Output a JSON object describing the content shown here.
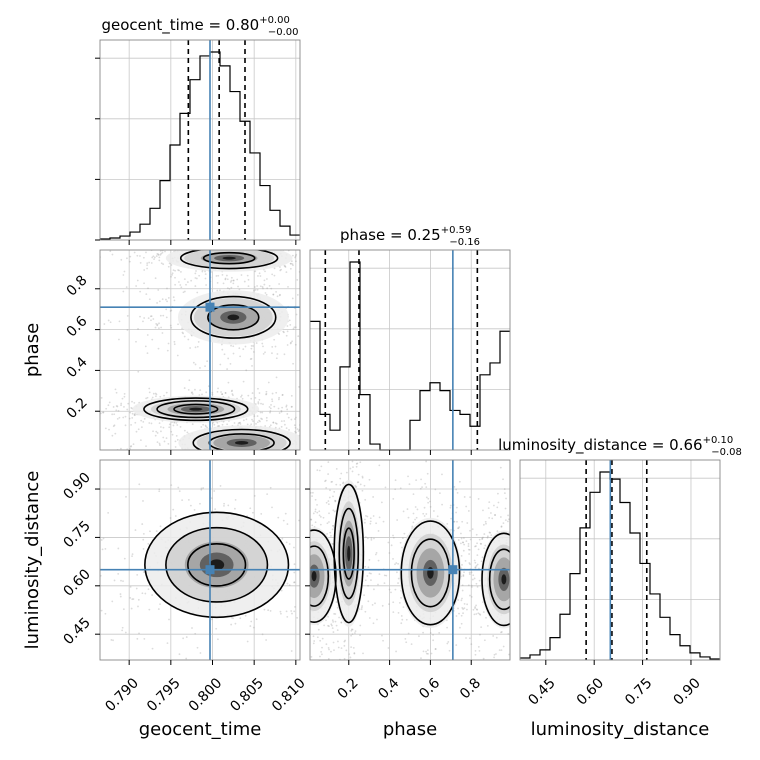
{
  "chart_data": {
    "type": "corner",
    "parameters": [
      "geocent_time",
      "phase",
      "luminosity_distance"
    ],
    "titles": {
      "geocent_time": {
        "name": "geocent_time",
        "median": "0.80",
        "plus": "+0.00",
        "minus": "−0.00"
      },
      "phase": {
        "name": "phase",
        "median": "0.25",
        "plus": "+0.59",
        "minus": "−0.16"
      },
      "luminosity_distance": {
        "name": "luminosity_distance",
        "median": "0.66",
        "plus": "+0.10",
        "minus": "−0.08"
      }
    },
    "ranges": {
      "geocent_time": [
        0.7865,
        0.8105
      ],
      "phase": [
        0.01,
        0.99
      ],
      "luminosity_distance": [
        0.37,
        0.99
      ]
    },
    "ticks": {
      "geocent_time": {
        "values": [
          0.79,
          0.795,
          0.8,
          0.805,
          0.81
        ],
        "labels": [
          "0.790",
          "0.795",
          "0.800",
          "0.805",
          "0.810"
        ]
      },
      "phase": {
        "values": [
          0.2,
          0.4,
          0.6,
          0.8
        ],
        "labels": [
          "0.2",
          "0.4",
          "0.6",
          "0.8"
        ]
      },
      "luminosity_distance": {
        "values": [
          0.45,
          0.6,
          0.75,
          0.9
        ],
        "labels": [
          "0.45",
          "0.60",
          "0.75",
          "0.90"
        ]
      }
    },
    "truths": {
      "geocent_time": 0.7997,
      "phase": 0.71,
      "luminosity_distance": 0.65
    },
    "quantiles": {
      "geocent_time": [
        0.7971,
        0.8008,
        0.8039
      ],
      "phase": [
        0.085,
        0.25,
        0.83
      ],
      "luminosity_distance": [
        0.575,
        0.655,
        0.763
      ]
    },
    "histograms": {
      "geocent_time": {
        "edges": [
          0.7865,
          0.7877,
          0.7889,
          0.7901,
          0.7913,
          0.7925,
          0.7937,
          0.7949,
          0.7961,
          0.7973,
          0.7985,
          0.7997,
          0.8009,
          0.8021,
          0.8033,
          0.8045,
          0.8057,
          0.8069,
          0.8081,
          0.8093,
          0.8105
        ],
        "counts": [
          1,
          2,
          4,
          8,
          16,
          32,
          60,
          96,
          128,
          162,
          186,
          190,
          176,
          150,
          120,
          88,
          55,
          30,
          14,
          5
        ]
      },
      "phase": {
        "edges": [
          0.01,
          0.059,
          0.108,
          0.157,
          0.206,
          0.255,
          0.304,
          0.353,
          0.402,
          0.451,
          0.5,
          0.549,
          0.598,
          0.647,
          0.696,
          0.745,
          0.794,
          0.843,
          0.892,
          0.941,
          0.99
        ],
        "counts": [
          65,
          18,
          10,
          42,
          95,
          28,
          3,
          0,
          0,
          0,
          15,
          30,
          34,
          30,
          20,
          18,
          12,
          38,
          44,
          60
        ]
      },
      "luminosity_distance": {
        "edges": [
          0.37,
          0.401,
          0.432,
          0.463,
          0.494,
          0.525,
          0.556,
          0.587,
          0.618,
          0.649,
          0.68,
          0.711,
          0.742,
          0.773,
          0.804,
          0.835,
          0.866,
          0.897,
          0.928,
          0.959,
          0.99
        ],
        "counts": [
          2,
          5,
          10,
          22,
          45,
          85,
          130,
          165,
          185,
          178,
          155,
          125,
          95,
          65,
          42,
          25,
          14,
          7,
          3,
          1
        ]
      }
    },
    "contours": {
      "phase_vs_geocent_time": [
        {
          "x": 0.798,
          "y": 0.21,
          "sx": 0.004,
          "sy": 0.035,
          "levels": [
            0.4,
            0.6,
            0.85
          ]
        },
        {
          "x": 0.8035,
          "y": 0.045,
          "sx": 0.004,
          "sy": 0.045,
          "levels": [
            0.45,
            0.7
          ]
        },
        {
          "x": 0.8025,
          "y": 0.66,
          "sx": 0.0035,
          "sy": 0.07,
          "levels": [
            0.45,
            0.75
          ]
        },
        {
          "x": 0.802,
          "y": 0.95,
          "sx": 0.004,
          "sy": 0.035,
          "levels": [
            0.45,
            0.8
          ]
        }
      ],
      "luminosity_distance_vs_geocent_time": [
        {
          "x": 0.8005,
          "y": 0.665,
          "sx": 0.0045,
          "sy": 0.085,
          "levels": [
            0.25,
            0.5,
            0.8
          ]
        }
      ],
      "luminosity_distance_vs_phase": [
        {
          "x": 0.2,
          "y": 0.7,
          "sx": 0.04,
          "sy": 0.12,
          "levels": [
            0.3,
            0.6,
            0.85
          ]
        },
        {
          "x": 0.03,
          "y": 0.63,
          "sx": 0.06,
          "sy": 0.08,
          "levels": [
            0.3,
            0.6
          ]
        },
        {
          "x": 0.6,
          "y": 0.64,
          "sx": 0.08,
          "sy": 0.09,
          "levels": [
            0.3,
            0.6
          ]
        },
        {
          "x": 0.96,
          "y": 0.62,
          "sx": 0.06,
          "sy": 0.08,
          "levels": [
            0.3,
            0.6
          ]
        }
      ]
    },
    "colors": {
      "truth": "#4682b4",
      "line": "#000000",
      "grid": "#c8c8c8",
      "points": "#9a9a9a"
    }
  }
}
